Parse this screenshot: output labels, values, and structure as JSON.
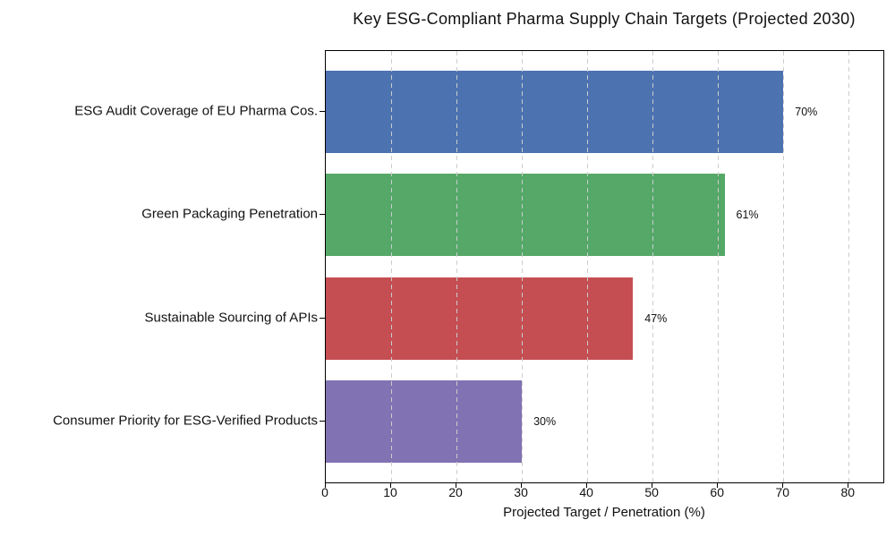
{
  "chart_data": {
    "type": "bar",
    "orientation": "horizontal",
    "title": "Key ESG-Compliant Pharma Supply Chain Targets (Projected 2030)",
    "categories": [
      "ESG Audit Coverage of EU Pharma Cos.",
      "Green Packaging Penetration",
      "Sustainable Sourcing of APIs",
      "Consumer Priority for ESG-Verified Products"
    ],
    "values": [
      70,
      61,
      47,
      30
    ],
    "value_labels": [
      "70%",
      "61%",
      "47%",
      "30%"
    ],
    "bar_colors": [
      "#4C72B0",
      "#55A868",
      "#C44E52",
      "#8172B3"
    ],
    "xlabel": "Projected Target / Penetration (%)",
    "ylabel": "",
    "xlim": [
      0,
      85.3
    ],
    "xticks": [
      0,
      10,
      20,
      30,
      40,
      50,
      60,
      70,
      80
    ],
    "grid": "vertical-dashed-over-bars",
    "grid_color": "#cccccc",
    "axis_color": "#000000",
    "text_color": "#111111",
    "background": "#ffffff",
    "legend": "none"
  }
}
